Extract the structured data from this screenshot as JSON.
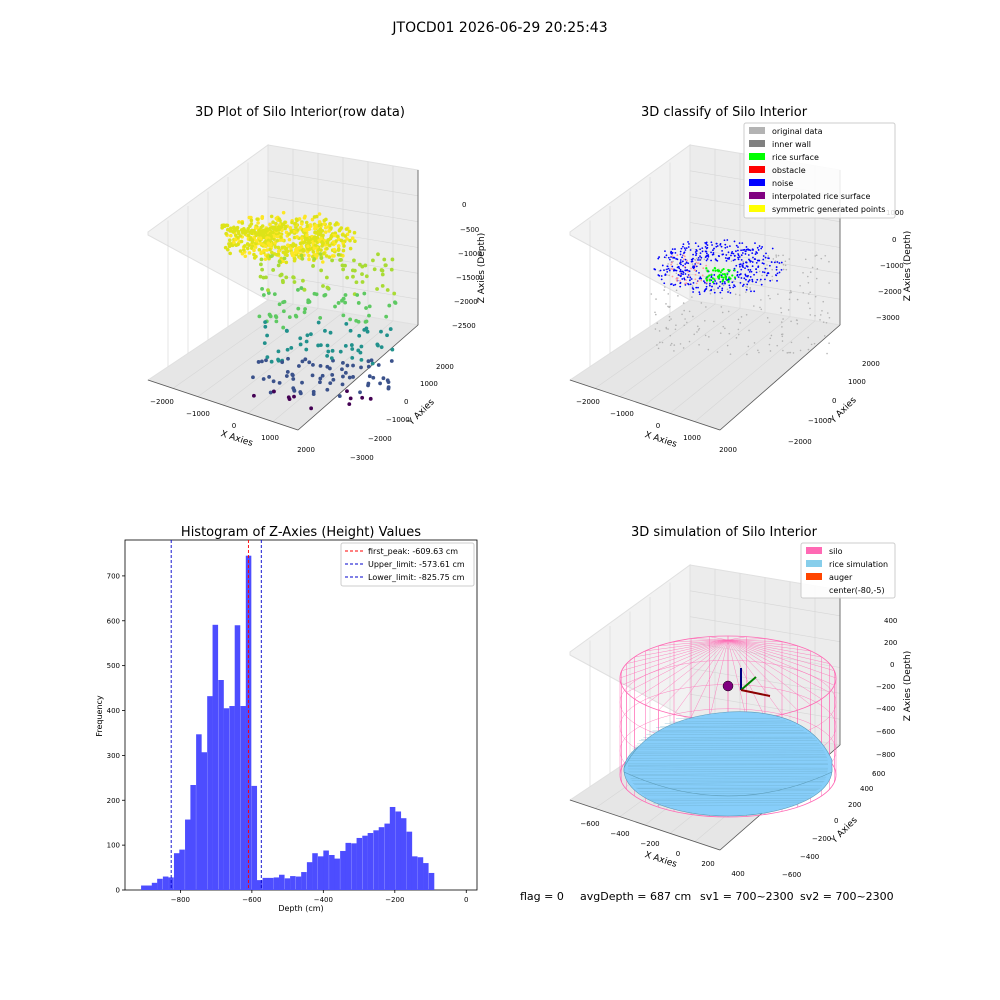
{
  "figure_title": "JTOCD01 2026-06-29 20:25:43",
  "footer": {
    "flag": "flag = 0",
    "avg_depth": "avgDepth = 687 cm",
    "sv1": "sv1 = 700~2300",
    "sv2": "sv2 = 700~2300"
  },
  "colors": {
    "bar": "#4d4dff",
    "red_line": "#ff0000",
    "blue_line": "#0000cc",
    "pane": "#f2f2f2",
    "grid": "#d6d6d6",
    "silo": "#ff69b4",
    "rice": "#87cefa",
    "auger": "#ff4500"
  },
  "chart_data": [
    {
      "type": "scatter3d",
      "title": "3D Plot of Silo Interior(row data)",
      "xlabel": "X Axies",
      "ylabel": "Y Axies",
      "zlabel": "Z Axies (Depth)",
      "x_ticks": [
        "−2000",
        "−1000",
        "0",
        "1000",
        "2000"
      ],
      "y_ticks": [
        "−3000",
        "−2000",
        "−1000",
        "0",
        "1000",
        "2000"
      ],
      "z_ticks": [
        "−2500",
        "−2000",
        "−1500",
        "−1000",
        "−500",
        "0"
      ],
      "colormap": "viridis"
    },
    {
      "type": "scatter3d",
      "title": "3D classify of Silo Interior",
      "xlabel": "X Axies",
      "ylabel": "Y Axies",
      "zlabel": "Z Axies (Depth)",
      "x_ticks": [
        "−2000",
        "−1000",
        "0",
        "1000",
        "2000"
      ],
      "y_ticks": [
        "−2000",
        "−1000",
        "0",
        "1000",
        "2000"
      ],
      "z_ticks": [
        "−3000",
        "−2000",
        "−1000",
        "0",
        "1000"
      ],
      "legend": [
        {
          "label": "original data",
          "color": "#b3b3b3"
        },
        {
          "label": "inner wall",
          "color": "#808080"
        },
        {
          "label": "rice surface",
          "color": "#00ff00"
        },
        {
          "label": "obstacle",
          "color": "#ff0000"
        },
        {
          "label": "noise",
          "color": "#0000ff"
        },
        {
          "label": "interpolated rice surface",
          "color": "#800080"
        },
        {
          "label": "symmetric generated points",
          "color": "#ffff00"
        }
      ]
    },
    {
      "type": "bar",
      "title": "Histogram of Z-Axies (Height) Values",
      "xlabel": "Depth (cm)",
      "ylabel": "Frequency",
      "xlim": [
        -955,
        30
      ],
      "ylim": [
        0,
        780
      ],
      "x_ticks": [
        -800,
        -600,
        -400,
        -200,
        0
      ],
      "y_ticks": [
        0,
        100,
        200,
        300,
        400,
        500,
        600,
        700
      ],
      "bin_width": 15.5,
      "bins": [
        [
          -910,
          10
        ],
        [
          -895,
          10
        ],
        [
          -880,
          16
        ],
        [
          -865,
          25
        ],
        [
          -849,
          30
        ],
        [
          -834,
          28
        ],
        [
          -818,
          82
        ],
        [
          -803,
          90
        ],
        [
          -787,
          157
        ],
        [
          -772,
          234
        ],
        [
          -756,
          347
        ],
        [
          -741,
          307
        ],
        [
          -725,
          432
        ],
        [
          -710,
          591
        ],
        [
          -694,
          468
        ],
        [
          -679,
          405
        ],
        [
          -663,
          410
        ],
        [
          -648,
          590
        ],
        [
          -632,
          410
        ],
        [
          -617,
          745
        ],
        [
          -601,
          232
        ],
        [
          -586,
          22
        ],
        [
          -570,
          27
        ],
        [
          -555,
          27
        ],
        [
          -539,
          28
        ],
        [
          -524,
          34
        ],
        [
          -508,
          26
        ],
        [
          -493,
          31
        ],
        [
          -477,
          30
        ],
        [
          -462,
          40
        ],
        [
          -446,
          62
        ],
        [
          -431,
          82
        ],
        [
          -415,
          75
        ],
        [
          -400,
          88
        ],
        [
          -384,
          78
        ],
        [
          -369,
          70
        ],
        [
          -353,
          87
        ],
        [
          -338,
          105
        ],
        [
          -322,
          104
        ],
        [
          -307,
          116
        ],
        [
          -291,
          121
        ],
        [
          -276,
          127
        ],
        [
          -260,
          133
        ],
        [
          -245,
          140
        ],
        [
          -229,
          148
        ],
        [
          -214,
          185
        ],
        [
          -198,
          175
        ],
        [
          -183,
          160
        ],
        [
          -167,
          130
        ],
        [
          -152,
          75
        ],
        [
          -136,
          73
        ],
        [
          -121,
          60
        ],
        [
          -105,
          38
        ]
      ],
      "vlines": [
        {
          "x": -609.63,
          "color": "#ff0000",
          "label": "first_peak: -609.63 cm"
        },
        {
          "x": -573.61,
          "color": "#0000cc",
          "label": "Upper_limit: -573.61 cm"
        },
        {
          "x": -825.75,
          "color": "#0000cc",
          "label": "Lower_limit: -825.75 cm"
        }
      ]
    },
    {
      "type": "surface3d",
      "title": "3D simulation of Silo Interior",
      "xlabel": "X Axies",
      "ylabel": "Y Axies",
      "zlabel": "Z Axies (Depth)",
      "x_ticks": [
        "−600",
        "−400",
        "−200",
        "0",
        "200",
        "400"
      ],
      "y_ticks": [
        "−600",
        "−400",
        "−200",
        "0",
        "200",
        "400",
        "600"
      ],
      "z_ticks": [
        "−800",
        "−600",
        "−400",
        "−200",
        "0",
        "200",
        "400"
      ],
      "legend": [
        {
          "label": "silo",
          "color": "#ff69b4"
        },
        {
          "label": "rice simulation",
          "color": "#87ceeb"
        },
        {
          "label": "auger",
          "color": "#ff4500"
        },
        {
          "label": "center(-80,-5)",
          "color": ""
        }
      ]
    }
  ]
}
